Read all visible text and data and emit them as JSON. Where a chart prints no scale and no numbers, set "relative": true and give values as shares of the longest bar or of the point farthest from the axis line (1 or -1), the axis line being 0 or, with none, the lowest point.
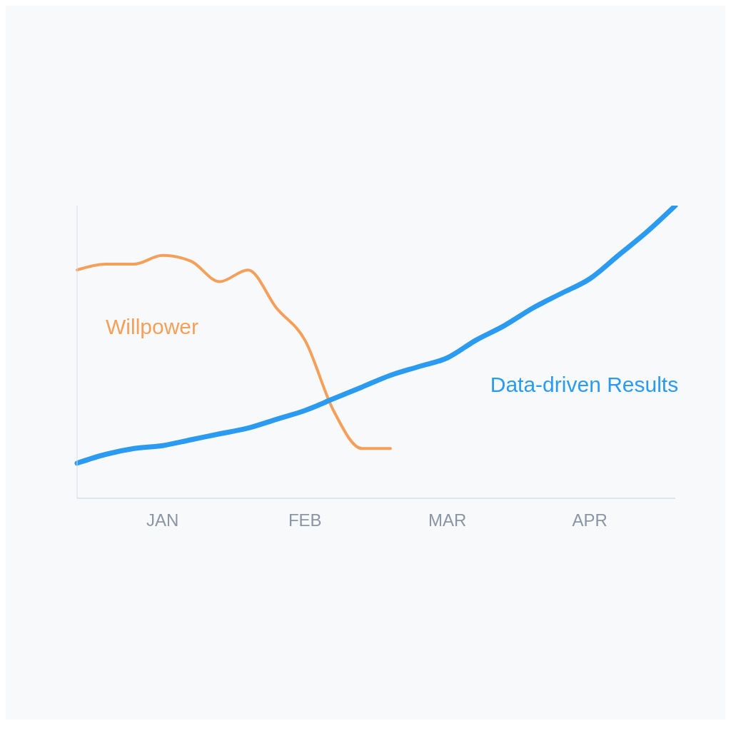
{
  "chart_data": {
    "type": "line",
    "relative": true,
    "marker": "none",
    "line_style": "solid",
    "categories": [
      null,
      null,
      null,
      "JAN",
      null,
      null,
      null,
      null,
      "FEB",
      null,
      null,
      null,
      null,
      "MAR",
      null,
      null,
      null,
      null,
      "APR",
      null,
      null,
      null
    ],
    "series": [
      {
        "name": "Willpower",
        "color": "#f5a05a",
        "values": [
          0.78,
          0.8,
          0.8,
          0.83,
          0.81,
          0.74,
          0.78,
          0.65,
          0.54,
          0.3,
          0.17,
          0.17,
          null,
          null,
          null,
          null,
          null,
          null,
          null,
          null,
          null,
          null
        ]
      },
      {
        "name": "Data-driven Results",
        "color": "#2a9bf0",
        "values": [
          0.12,
          0.15,
          0.17,
          0.18,
          0.2,
          0.22,
          0.24,
          0.27,
          0.3,
          0.34,
          0.38,
          0.42,
          0.45,
          0.48,
          0.54,
          0.59,
          0.65,
          0.7,
          0.75,
          0.83,
          0.91,
          1
        ]
      }
    ]
  }
}
